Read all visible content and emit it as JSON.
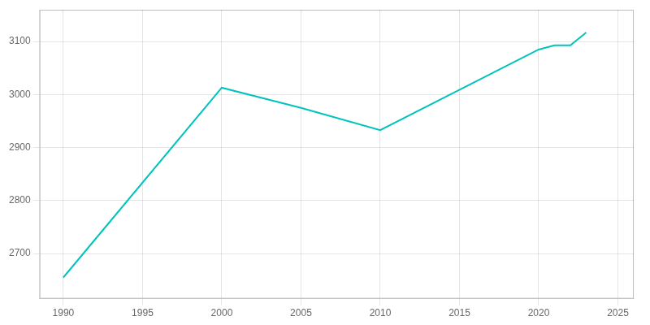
{
  "chart_data": {
    "type": "line",
    "x": [
      1990,
      2000,
      2005,
      2010,
      2020,
      2021,
      2022,
      2023
    ],
    "values": [
      2655,
      3013,
      2975,
      2933,
      3085,
      3093,
      3093,
      3117
    ],
    "color": "#00C4BC",
    "xlim": [
      1988.5,
      2026
    ],
    "xticks": [
      1990,
      1995,
      2000,
      2005,
      2010,
      2015,
      2020,
      2025
    ],
    "ylim": [
      2615,
      3160
    ],
    "yticks": [
      2700,
      2800,
      2900,
      3000,
      3100
    ],
    "grid": true
  }
}
